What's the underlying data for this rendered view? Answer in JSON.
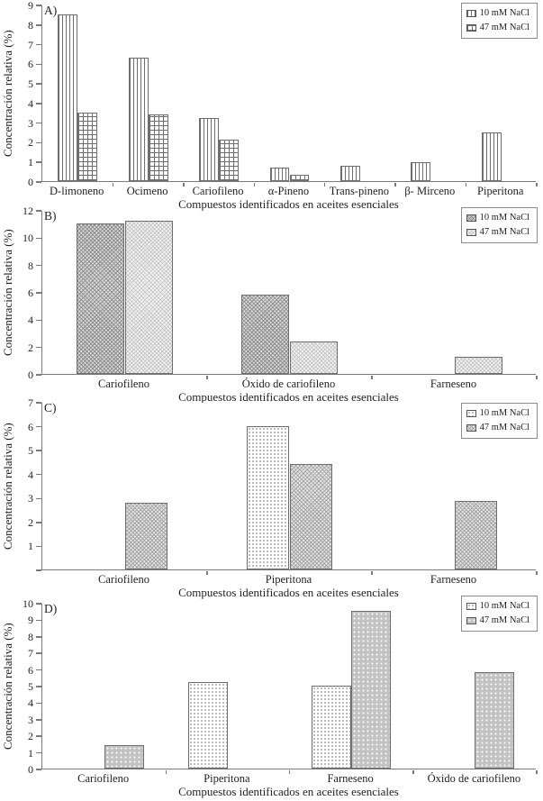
{
  "figure": {
    "series_labels": [
      "10 mM NaCl",
      "47 mM NaCl"
    ],
    "colors": {
      "axis": "#7a7a7a",
      "text": "#1f1f1f",
      "bar_border": "#6e6e6e",
      "legend_border": "#8c8c8c",
      "gray_fill": "#c2c2c2"
    }
  },
  "chart_data": [
    {
      "panel_label": "A)",
      "type": "bar",
      "title": "",
      "ylabel": "Concentración relativa (%)",
      "xlabel": "Compuestos identificados en aceites esenciales",
      "ylim": [
        0,
        9
      ],
      "ytick_step": 1,
      "hide_zero_tick": false,
      "grid": false,
      "legend_position": "top-right",
      "categories": [
        "D-limoneno",
        "Ocimeno",
        "Cariofileno",
        "α-Pineno",
        "Trans-pineno",
        "β- Mirceno",
        "Piperitona"
      ],
      "series": [
        {
          "name": "10 mM NaCl",
          "pattern": "vlines",
          "values": [
            8.5,
            6.3,
            3.2,
            0.7,
            0.8,
            0.95,
            2.5
          ]
        },
        {
          "name": "47 mM NaCl",
          "pattern": "grid",
          "values": [
            3.5,
            3.4,
            2.1,
            0.3,
            0,
            0,
            0
          ]
        }
      ]
    },
    {
      "panel_label": "B)",
      "type": "bar",
      "title": "",
      "ylabel": "Concentración relativa (%)",
      "xlabel": "Compuestos identificados en aceites esenciales",
      "ylim": [
        0,
        12
      ],
      "ytick_step": 2,
      "hide_zero_tick": false,
      "grid": false,
      "legend_position": "top-right",
      "categories": [
        "Cariofileno",
        "Óxido de cariofileno",
        "Farneseno"
      ],
      "series": [
        {
          "name": "10 mM NaCl",
          "pattern": "weave-dark",
          "values": [
            11.0,
            5.8,
            0
          ]
        },
        {
          "name": "47 mM NaCl",
          "pattern": "weave-light",
          "values": [
            11.2,
            2.4,
            1.25
          ]
        }
      ]
    },
    {
      "panel_label": "C)",
      "type": "bar",
      "title": "",
      "ylabel": "Concentración relativa (%)",
      "xlabel": "Compuestos identificados en aceites esenciales",
      "ylim": [
        0,
        7
      ],
      "ytick_step": 1,
      "hide_zero_tick": true,
      "grid": false,
      "legend_position": "top-right",
      "categories": [
        "Cariofileno",
        "Piperitona",
        "Farneseno"
      ],
      "series": [
        {
          "name": "10 mM NaCl",
          "pattern": "dots-fine",
          "values": [
            0,
            6.0,
            0
          ]
        },
        {
          "name": "47 mM NaCl",
          "pattern": "weave-gray",
          "values": [
            2.8,
            4.4,
            2.85
          ]
        }
      ]
    },
    {
      "panel_label": "D)",
      "type": "bar",
      "title": "",
      "ylabel": "Concentración relativa (%)",
      "xlabel": "Compuestos identificados en aceites esenciales",
      "ylim": [
        0,
        10
      ],
      "ytick_step": 1,
      "hide_zero_tick": false,
      "grid": false,
      "legend_position": "top-right",
      "categories": [
        "Cariofileno",
        "Piperitona",
        "Farneseno",
        "Óxido de cariofileno"
      ],
      "series": [
        {
          "name": "10 mM NaCl",
          "pattern": "dots-fine",
          "values": [
            0,
            5.2,
            5.0,
            0
          ]
        },
        {
          "name": "47 mM NaCl",
          "pattern": "gray-dots",
          "values": [
            1.4,
            0,
            9.5,
            5.8
          ]
        }
      ]
    }
  ]
}
